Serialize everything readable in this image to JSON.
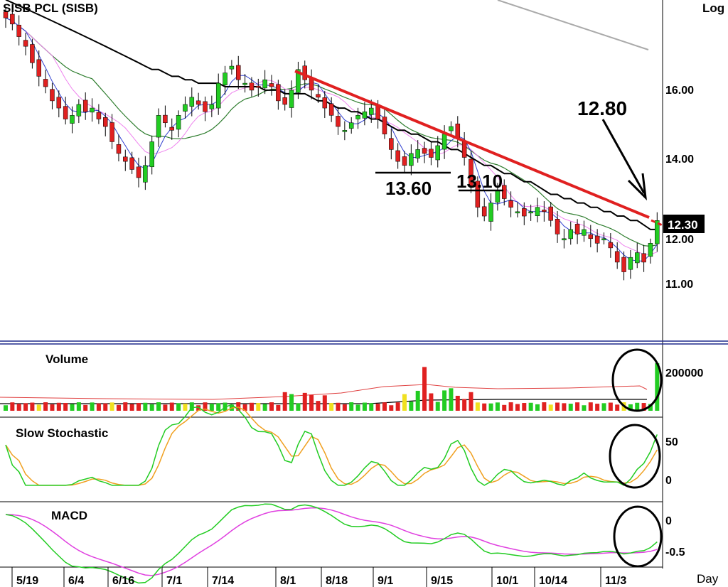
{
  "chart_data": {
    "type": "candlestick",
    "title": "SISB  PCL  (SISB)",
    "scale_label": "Log",
    "xaxis_label": "Day",
    "x_ticks": [
      "5/19",
      "6/4",
      "6/16",
      "7/1",
      "7/14",
      "8/1",
      "8/18",
      "9/1",
      "9/15",
      "10/1",
      "10/14",
      "11/3"
    ],
    "price_ticks": [
      "16.00",
      "14.00",
      "12.00",
      "11.00"
    ],
    "price_ylim": [
      10.0,
      18.2
    ],
    "price_flag": "12.30",
    "annotations": [
      "12.80",
      "13.60",
      "13.10"
    ],
    "closes": [
      17.8,
      17.6,
      17.2,
      16.9,
      16.4,
      16.0,
      15.7,
      15.3,
      15.1,
      14.8,
      14.9,
      15.2,
      15.0,
      15.1,
      14.8,
      14.6,
      14.2,
      13.9,
      13.7,
      13.5,
      13.3,
      13.6,
      14.2,
      14.9,
      14.7,
      14.5,
      14.9,
      15.2,
      15.4,
      15.2,
      15.0,
      15.2,
      15.8,
      16.1,
      16.3,
      15.9,
      15.8,
      15.6,
      15.7,
      15.9,
      15.7,
      15.3,
      15.2,
      15.6,
      16.2,
      15.9,
      15.6,
      15.4,
      15.1,
      14.9,
      14.6,
      14.5,
      14.7,
      14.9,
      15.0,
      15.1,
      14.8,
      14.4,
      14.0,
      13.7,
      13.6,
      13.9,
      14.0,
      13.9,
      13.8,
      14.1,
      14.4,
      14.6,
      14.3,
      13.8,
      13.1,
      12.6,
      12.4,
      12.7,
      13.0,
      12.8,
      12.6,
      12.5,
      12.4,
      12.5,
      12.6,
      12.5,
      12.3,
      12.0,
      11.9,
      12.1,
      12.0,
      12.1,
      11.9,
      11.8,
      11.9,
      11.7,
      11.4,
      11.2,
      11.5,
      11.6,
      11.4,
      11.8,
      12.3
    ],
    "ma_long": [
      18.4,
      18.3,
      18.2,
      18.1,
      18.0,
      17.9,
      17.8,
      17.7,
      17.6,
      17.5,
      17.4,
      17.3,
      17.2,
      17.1,
      17.0,
      16.9,
      16.8,
      16.7,
      16.6,
      16.5,
      16.4,
      16.3,
      16.2,
      16.2,
      16.1,
      16.0,
      16.0,
      15.9,
      15.9,
      15.8,
      15.8,
      15.8,
      15.8,
      15.7,
      15.7,
      15.7,
      15.7,
      15.7,
      15.7,
      15.6,
      15.6,
      15.6,
      15.5,
      15.5,
      15.5,
      15.5,
      15.4,
      15.3,
      15.3,
      15.2,
      15.1,
      15.1,
      15.0,
      15.0,
      14.9,
      14.8,
      14.8,
      14.7,
      14.6,
      14.5,
      14.5,
      14.4,
      14.4,
      14.3,
      14.2,
      14.2,
      14.1,
      14.0,
      14.0,
      13.9,
      13.8,
      13.7,
      13.6,
      13.6,
      13.5,
      13.4,
      13.4,
      13.3,
      13.2,
      13.2,
      13.1,
      13.0,
      12.9,
      12.9,
      12.8,
      12.8,
      12.7,
      12.7,
      12.6,
      12.6,
      12.5,
      12.5,
      12.4,
      12.4,
      12.3,
      12.3,
      12.2,
      12.1,
      12.1
    ],
    "volume": {
      "label": "Volume",
      "tick": "200000",
      "ylim": [
        0,
        250000
      ]
    },
    "stochastic": {
      "label": "Slow  Stochastic",
      "ticks": [
        "50",
        "0"
      ],
      "ylim": [
        -15,
        80
      ]
    },
    "macd": {
      "label": "MACD",
      "ticks": [
        "0",
        "-0.5"
      ],
      "ylim": [
        -0.72,
        0.12
      ]
    }
  }
}
